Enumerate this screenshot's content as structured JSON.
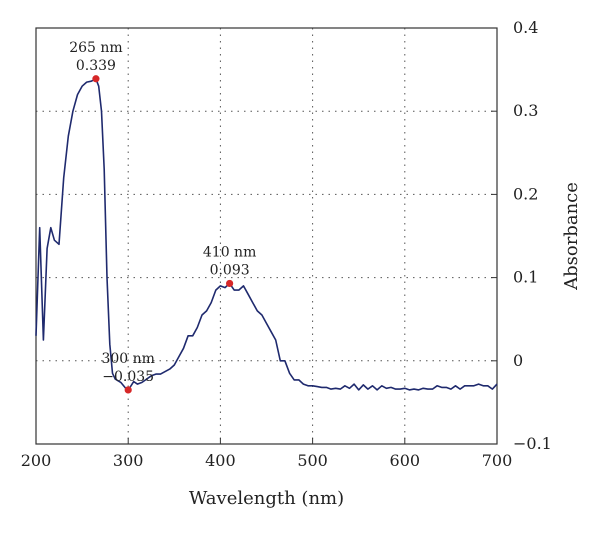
{
  "chart_data": {
    "type": "line",
    "title": "",
    "xlabel": "Wavelength (nm)",
    "ylabel": "Absorbance",
    "xlim": [
      200,
      700
    ],
    "ylim": [
      -0.1,
      0.4
    ],
    "x_ticks": [
      200,
      300,
      400,
      500,
      600,
      700
    ],
    "x_tick_labels": [
      "200",
      "300",
      "400",
      "500",
      "600",
      "700"
    ],
    "y_ticks": [
      -0.1,
      0,
      0.1,
      0.2,
      0.3,
      0.4
    ],
    "y_tick_labels": [
      "−0.1",
      "0",
      "0.1",
      "0.2",
      "0.3",
      "0.4"
    ],
    "y_axis_position": "right",
    "grid": "dotted",
    "series_color": "#1f2a6e",
    "marker_color": "#d62728",
    "series": [
      {
        "x": [
          200,
          204,
          208,
          212,
          216,
          220,
          225,
          230,
          235,
          240,
          245,
          250,
          255,
          260,
          265,
          268,
          271,
          274,
          277,
          280,
          283,
          286,
          289,
          292,
          295,
          298,
          300,
          303,
          306,
          310,
          315,
          320,
          325,
          330,
          335,
          340,
          345,
          350,
          355,
          360,
          365,
          370,
          375,
          380,
          385,
          390,
          395,
          400,
          405,
          410,
          415,
          420,
          425,
          430,
          435,
          440,
          445,
          450,
          455,
          460,
          465,
          470,
          475,
          480,
          485,
          490,
          495,
          500,
          505,
          510,
          515,
          520,
          525,
          530,
          535,
          540,
          545,
          550,
          555,
          560,
          565,
          570,
          575,
          580,
          585,
          590,
          595,
          600,
          605,
          610,
          615,
          620,
          625,
          630,
          635,
          640,
          645,
          650,
          655,
          660,
          665,
          670,
          675,
          680,
          685,
          690,
          695,
          700
        ],
        "y": [
          0.03,
          0.16,
          0.025,
          0.135,
          0.16,
          0.145,
          0.14,
          0.22,
          0.27,
          0.3,
          0.32,
          0.33,
          0.335,
          0.336,
          0.339,
          0.33,
          0.3,
          0.23,
          0.1,
          0.02,
          -0.015,
          -0.022,
          -0.024,
          -0.026,
          -0.03,
          -0.034,
          -0.035,
          -0.03,
          -0.025,
          -0.028,
          -0.026,
          -0.022,
          -0.018,
          -0.016,
          -0.016,
          -0.013,
          -0.01,
          -0.005,
          0.005,
          0.015,
          0.03,
          0.03,
          0.04,
          0.055,
          0.06,
          0.07,
          0.085,
          0.09,
          0.088,
          0.093,
          0.085,
          0.085,
          0.09,
          0.08,
          0.07,
          0.06,
          0.055,
          0.045,
          0.035,
          0.025,
          0.0,
          0.0,
          -0.015,
          -0.023,
          -0.023,
          -0.028,
          -0.03,
          -0.03,
          -0.031,
          -0.032,
          -0.032,
          -0.034,
          -0.033,
          -0.034,
          -0.03,
          -0.033,
          -0.028,
          -0.035,
          -0.029,
          -0.034,
          -0.03,
          -0.035,
          -0.03,
          -0.033,
          -0.032,
          -0.034,
          -0.034,
          -0.033,
          -0.035,
          -0.034,
          -0.035,
          -0.033,
          -0.034,
          -0.034,
          -0.03,
          -0.032,
          -0.032,
          -0.034,
          -0.03,
          -0.034,
          -0.03,
          -0.03,
          -0.03,
          -0.028,
          -0.03,
          -0.03,
          -0.034,
          -0.028
        ]
      }
    ],
    "annotations": [
      {
        "x": 265,
        "y": 0.339,
        "line1": "265 nm",
        "line2": "0.339",
        "placement": "above"
      },
      {
        "x": 300,
        "y": -0.035,
        "line1": "300 nm",
        "line2": "−0.035",
        "placement": "above"
      },
      {
        "x": 410,
        "y": 0.093,
        "line1": "410 nm",
        "line2": "0.093",
        "placement": "above"
      }
    ]
  }
}
